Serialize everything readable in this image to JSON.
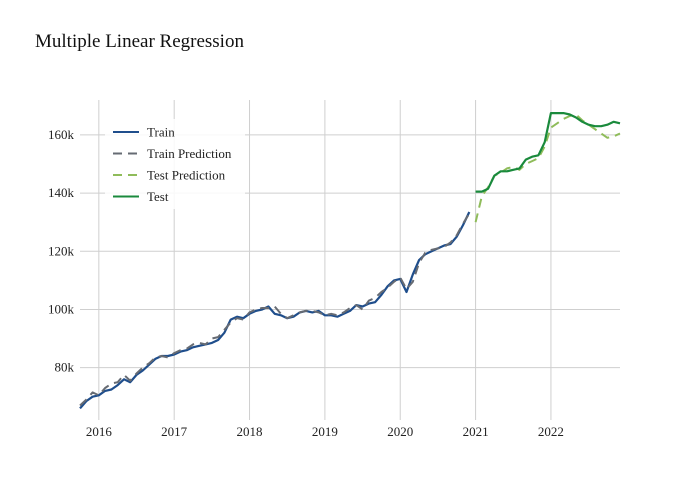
{
  "chart_data": {
    "type": "line",
    "title": "Multiple Linear Regression",
    "xlabel": "",
    "ylabel": "",
    "x_ticks": [
      "2016",
      "2017",
      "2018",
      "2019",
      "2020",
      "2021",
      "2022"
    ],
    "y_ticks": [
      "80k",
      "100k",
      "120k",
      "140k",
      "160k"
    ],
    "xlim": [
      "2015-10",
      "2022-12"
    ],
    "ylim": [
      62000,
      172000
    ],
    "grid": true,
    "legend_position": "top-left",
    "series": [
      {
        "name": "Train",
        "color": "#1f4e8c",
        "dash": "solid",
        "x": [
          "2015-10",
          "2015-11",
          "2015-12",
          "2016-01",
          "2016-02",
          "2016-03",
          "2016-04",
          "2016-05",
          "2016-06",
          "2016-07",
          "2016-08",
          "2016-09",
          "2016-10",
          "2016-11",
          "2016-12",
          "2017-01",
          "2017-02",
          "2017-03",
          "2017-04",
          "2017-05",
          "2017-06",
          "2017-07",
          "2017-08",
          "2017-09",
          "2017-10",
          "2017-11",
          "2017-12",
          "2018-01",
          "2018-02",
          "2018-03",
          "2018-04",
          "2018-05",
          "2018-06",
          "2018-07",
          "2018-08",
          "2018-09",
          "2018-10",
          "2018-11",
          "2018-12",
          "2019-01",
          "2019-02",
          "2019-03",
          "2019-04",
          "2019-05",
          "2019-06",
          "2019-07",
          "2019-08",
          "2019-09",
          "2019-10",
          "2019-11",
          "2019-12",
          "2020-01",
          "2020-02",
          "2020-03",
          "2020-04",
          "2020-05",
          "2020-06",
          "2020-07",
          "2020-08",
          "2020-09",
          "2020-10",
          "2020-11",
          "2020-12"
        ],
        "values": [
          66000,
          68500,
          70000,
          70500,
          72000,
          72500,
          74000,
          76000,
          75000,
          77500,
          79000,
          81000,
          83000,
          84000,
          84000,
          84500,
          85500,
          86000,
          87000,
          87500,
          88000,
          88500,
          89500,
          92000,
          96500,
          97500,
          97000,
          98500,
          99500,
          100000,
          101000,
          98500,
          98000,
          97000,
          97500,
          99000,
          99500,
          99000,
          99500,
          98000,
          98000,
          97500,
          98500,
          99500,
          101500,
          101000,
          102000,
          102500,
          105000,
          108000,
          110000,
          110500,
          106000,
          112000,
          117000,
          119000,
          120000,
          121000,
          122000,
          122500,
          125000,
          129000,
          133500
        ]
      },
      {
        "name": "Train Prediction",
        "color": "#666b73",
        "dash": "dashed",
        "x": [
          "2015-10",
          "2015-11",
          "2015-12",
          "2016-01",
          "2016-02",
          "2016-03",
          "2016-04",
          "2016-05",
          "2016-06",
          "2016-07",
          "2016-08",
          "2016-09",
          "2016-10",
          "2016-11",
          "2016-12",
          "2017-01",
          "2017-02",
          "2017-03",
          "2017-04",
          "2017-05",
          "2017-06",
          "2017-07",
          "2017-08",
          "2017-09",
          "2017-10",
          "2017-11",
          "2017-12",
          "2018-01",
          "2018-02",
          "2018-03",
          "2018-04",
          "2018-05",
          "2018-06",
          "2018-07",
          "2018-08",
          "2018-09",
          "2018-10",
          "2018-11",
          "2018-12",
          "2019-01",
          "2019-02",
          "2019-03",
          "2019-04",
          "2019-05",
          "2019-06",
          "2019-07",
          "2019-08",
          "2019-09",
          "2019-10",
          "2019-11",
          "2019-12",
          "2020-01",
          "2020-02",
          "2020-03",
          "2020-04",
          "2020-05",
          "2020-06",
          "2020-07",
          "2020-08",
          "2020-09",
          "2020-10",
          "2020-11",
          "2020-12"
        ],
        "values": [
          67000,
          69000,
          71500,
          70500,
          73000,
          74500,
          75000,
          77500,
          75500,
          78000,
          80000,
          81500,
          83500,
          84000,
          83500,
          85000,
          86000,
          86500,
          88000,
          88500,
          88000,
          90000,
          90500,
          93000,
          95500,
          97000,
          96500,
          99000,
          100000,
          100500,
          100500,
          101000,
          98500,
          97000,
          98000,
          99000,
          99500,
          99500,
          99000,
          98000,
          98500,
          98000,
          99000,
          100500,
          101500,
          100000,
          103000,
          104000,
          106000,
          107500,
          109500,
          111000,
          107000,
          109500,
          116000,
          119500,
          120500,
          121000,
          121500,
          123000,
          125500,
          129500,
          133000
        ]
      },
      {
        "name": "Test Prediction",
        "color": "#8fbc5a",
        "dash": "dashed",
        "x": [
          "2021-01",
          "2021-02",
          "2021-03",
          "2021-04",
          "2021-05",
          "2021-06",
          "2021-07",
          "2021-08",
          "2021-09",
          "2021-10",
          "2021-11",
          "2021-12",
          "2022-01",
          "2022-02",
          "2022-03",
          "2022-04",
          "2022-05",
          "2022-06",
          "2022-07",
          "2022-08",
          "2022-09",
          "2022-10",
          "2022-11",
          "2022-12"
        ],
        "values": [
          130000,
          139000,
          142000,
          146000,
          147000,
          148500,
          149000,
          148000,
          150000,
          151000,
          152000,
          156000,
          162500,
          164000,
          165500,
          166500,
          167000,
          165000,
          163500,
          162000,
          160500,
          159000,
          159500,
          160500
        ]
      },
      {
        "name": "Test",
        "color": "#1a8a3c",
        "dash": "solid",
        "x": [
          "2021-01",
          "2021-02",
          "2021-03",
          "2021-04",
          "2021-05",
          "2021-06",
          "2021-07",
          "2021-08",
          "2021-09",
          "2021-10",
          "2021-11",
          "2021-12",
          "2022-01",
          "2022-02",
          "2022-03",
          "2022-04",
          "2022-05",
          "2022-06",
          "2022-07",
          "2022-08",
          "2022-09",
          "2022-10",
          "2022-11",
          "2022-12"
        ],
        "values": [
          140500,
          140500,
          141500,
          146000,
          147500,
          147500,
          148000,
          148500,
          151500,
          152500,
          153000,
          157500,
          167500,
          167500,
          167500,
          167000,
          166000,
          164500,
          163500,
          163000,
          163000,
          163500,
          164500,
          164000
        ]
      }
    ]
  }
}
